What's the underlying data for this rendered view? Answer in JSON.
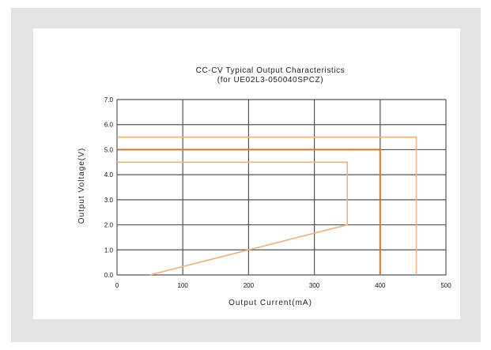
{
  "chart_data": {
    "type": "line",
    "title": "CC-CV Typical Output Characteristics",
    "subtitle": "(for UE02L3-050040SPCZ)",
    "xlabel": "Output Current(mA)",
    "ylabel": "Output Voltage(V)",
    "xlim": [
      0,
      500
    ],
    "ylim": [
      0,
      7
    ],
    "x_ticks": [
      "0",
      "100",
      "200",
      "300",
      "400",
      "500"
    ],
    "y_ticks": [
      "0.0",
      "1.0",
      "2.0",
      "3.0",
      "4.0",
      "5.0",
      "6.0",
      "7.0"
    ],
    "grid": true,
    "legend": "none",
    "colors": {
      "grid": "#555555",
      "nominal": "#c97a3a",
      "limits": "#f0b07a",
      "frame_bg": "#e3e3e3"
    },
    "series": [
      {
        "role": "nominal",
        "x": [
          0,
          400,
          400
        ],
        "y": [
          5.0,
          5.0,
          0.0
        ]
      },
      {
        "role": "limit",
        "x": [
          0,
          455,
          455
        ],
        "y": [
          5.5,
          5.5,
          0.0
        ]
      },
      {
        "role": "limit",
        "x": [
          0,
          350,
          350,
          50
        ],
        "y": [
          4.5,
          4.5,
          2.0,
          0.0
        ]
      }
    ]
  }
}
